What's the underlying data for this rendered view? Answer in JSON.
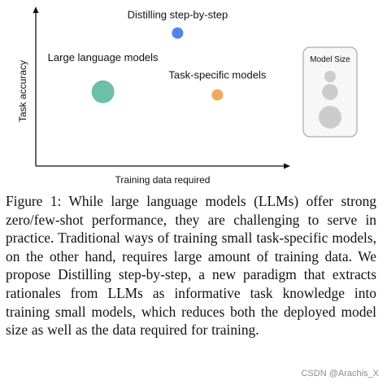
{
  "chart_data": {
    "type": "scatter",
    "xlabel": "Training data required",
    "ylabel": "Task accuracy",
    "points": [
      {
        "label": "Distilling step-by-step",
        "x": 0.57,
        "y": 0.86,
        "size": 1,
        "color": "#4f86ea"
      },
      {
        "label": "Large language models",
        "x": 0.27,
        "y": 0.48,
        "size": 4,
        "color": "#6dbfa6"
      },
      {
        "label": "Task-specific models",
        "x": 0.73,
        "y": 0.46,
        "size": 1,
        "color": "#eeaa5c"
      }
    ],
    "legend": {
      "title": "Model Size",
      "sizes": [
        1,
        2,
        4
      ],
      "color": "#cccccc",
      "placement": "right"
    }
  },
  "caption": {
    "label": "Figure 1:",
    "text": "While large language models (LLMs) offer strong zero/few-shot performance, they are challenging to serve in practice. Traditional ways of training small task-specific models, on the other hand, requires large amount of training data. We propose Distilling step-by-step, a new paradigm that extracts rationales from LLMs as informative task knowledge into training small models, which reduces both the deployed model size as well as the data required for training."
  },
  "watermark": "CSDN @Arachis_X"
}
